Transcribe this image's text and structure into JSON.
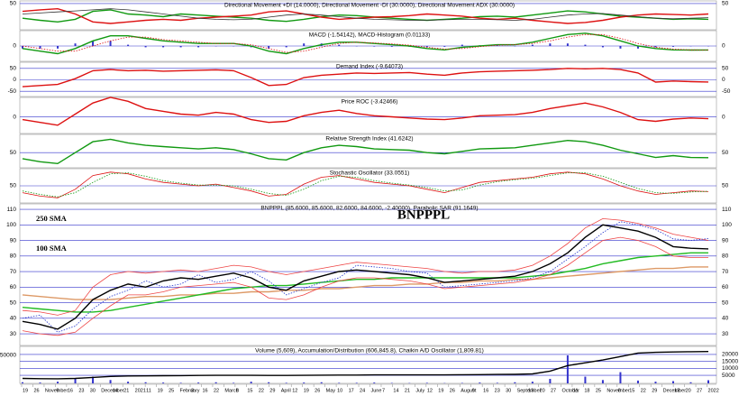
{
  "chart_data": [
    {
      "type": "line",
      "title": "Directional Movement +DI (14.0000), Directional Movement -DI (30.0000), Directional Movement ADX (30.0000)",
      "ylim": [
        0,
        55
      ],
      "yticks": [
        50
      ],
      "series": [
        {
          "color": "#119911",
          "style": "line",
          "values": [
            22,
            18,
            15,
            20,
            35,
            38,
            30,
            28,
            25,
            30,
            28,
            26,
            24,
            22,
            18,
            16,
            20,
            25,
            28,
            27,
            24,
            22,
            20,
            18,
            20,
            22,
            25,
            26,
            24,
            28,
            32,
            36,
            34,
            30,
            26,
            24,
            22,
            20,
            21,
            20
          ]
        },
        {
          "color": "#dd1111",
          "style": "line",
          "values": [
            35,
            38,
            40,
            30,
            15,
            12,
            15,
            18,
            20,
            18,
            22,
            24,
            26,
            28,
            34,
            36,
            30,
            24,
            20,
            22,
            24,
            25,
            27,
            30,
            28,
            26,
            22,
            20,
            22,
            18,
            15,
            12,
            14,
            18,
            24,
            28,
            30,
            29,
            28,
            30
          ]
        },
        {
          "color": "#333333",
          "style": "thin",
          "values": [
            30,
            32,
            34,
            36,
            38,
            40,
            38,
            34,
            30,
            26,
            22,
            20,
            19,
            20,
            24,
            28,
            30,
            28,
            25,
            22,
            20,
            19,
            18,
            18,
            19,
            20,
            20,
            19,
            18,
            20,
            24,
            28,
            30,
            31,
            28,
            25,
            22,
            21,
            22,
            23
          ]
        }
      ]
    },
    {
      "type": "line",
      "title": "MACD (-1.54142), MACD-Histogram (0.01133)",
      "ylim": [
        -6,
        6
      ],
      "yticks": [
        0
      ],
      "series": [
        {
          "color": "#3333cc",
          "style": "bar",
          "values": [
            -1,
            -1,
            -1,
            1,
            2,
            2,
            0.5,
            -0.5,
            -0.5,
            -0.5,
            -0.5,
            0,
            0,
            -0.5,
            -1,
            -0.5,
            1,
            1,
            0.5,
            0,
            -0.2,
            -0.3,
            -0.3,
            -0.5,
            -0.3,
            0.5,
            0.3,
            0.2,
            0,
            0.5,
            1,
            1,
            0.5,
            -0.5,
            -1,
            -1,
            -0.5,
            -0.3,
            -0.1,
            0.01133
          ]
        },
        {
          "color": "#119911",
          "style": "line",
          "values": [
            -1,
            -2,
            -3,
            -1,
            2,
            4,
            4,
            3,
            2,
            1.5,
            1,
            1,
            1,
            0,
            -2,
            -3,
            -1,
            0.5,
            1.5,
            1.5,
            1,
            0.5,
            0,
            -1,
            -1.5,
            -0.5,
            0,
            0.5,
            0.5,
            1.5,
            3,
            4.5,
            5,
            4,
            2,
            0,
            -1,
            -1.5,
            -1.6,
            -1.54142
          ]
        },
        {
          "color": "#dd1111",
          "style": "dotted",
          "values": [
            0,
            -1,
            -2,
            -2,
            0,
            2,
            3.5,
            3.5,
            2.5,
            2,
            1.5,
            1,
            1,
            0.5,
            -1,
            -2.5,
            -2,
            -0.5,
            1,
            1.5,
            1.2,
            0.8,
            0.3,
            -0.5,
            -1.2,
            -1,
            -0.3,
            0.3,
            0.5,
            1,
            2,
            3.5,
            4.5,
            4.5,
            3,
            1,
            -0.5,
            -1.2,
            -1.5,
            -1.55
          ]
        }
      ]
    },
    {
      "type": "line",
      "title": "Demand Index (-9.64073)",
      "ylim": [
        -73,
        77
      ],
      "yticks": [
        50,
        0,
        -50
      ],
      "series": [
        {
          "color": "#dd1111",
          "style": "line",
          "values": [
            -30,
            -25,
            -20,
            5,
            40,
            45,
            40,
            42,
            38,
            40,
            42,
            44,
            40,
            10,
            -25,
            -20,
            10,
            20,
            25,
            30,
            28,
            30,
            32,
            25,
            20,
            30,
            35,
            38,
            40,
            42,
            45,
            50,
            48,
            50,
            45,
            30,
            -10,
            -5,
            -8,
            -9.64
          ]
        }
      ]
    },
    {
      "type": "line",
      "title": "Price ROC (-3.42466)",
      "ylim": [
        -30,
        35
      ],
      "yticks": [
        0
      ],
      "series": [
        {
          "color": "#dd1111",
          "style": "line",
          "values": [
            -5,
            -10,
            -15,
            5,
            25,
            35,
            28,
            15,
            10,
            5,
            3,
            8,
            5,
            -5,
            -10,
            -8,
            2,
            8,
            12,
            6,
            2,
            0,
            -2,
            -4,
            -5,
            -2,
            2,
            3,
            4,
            8,
            15,
            20,
            25,
            18,
            8,
            -5,
            -8,
            -4,
            -2,
            -3.42
          ]
        }
      ]
    },
    {
      "type": "line",
      "title": "Relative Strength Index (41.6242)",
      "ylim": [
        25,
        80
      ],
      "yticks": [
        50
      ],
      "series": [
        {
          "color": "#119911",
          "style": "line",
          "values": [
            40,
            35,
            32,
            50,
            68,
            72,
            66,
            62,
            60,
            58,
            56,
            58,
            55,
            48,
            40,
            38,
            50,
            58,
            62,
            60,
            56,
            55,
            54,
            50,
            48,
            52,
            56,
            57,
            58,
            62,
            66,
            70,
            68,
            62,
            54,
            48,
            42,
            45,
            42,
            41.6
          ]
        }
      ]
    },
    {
      "type": "line",
      "title": "Stochastic Oscillator (33.0551)",
      "ylim": [
        0,
        100
      ],
      "yticks": [
        50
      ],
      "series": [
        {
          "color": "#dd1111",
          "style": "thin",
          "values": [
            30,
            20,
            15,
            40,
            80,
            90,
            85,
            70,
            60,
            55,
            50,
            55,
            45,
            35,
            20,
            25,
            55,
            75,
            80,
            70,
            60,
            55,
            50,
            40,
            30,
            45,
            60,
            65,
            70,
            75,
            85,
            90,
            85,
            70,
            50,
            35,
            25,
            30,
            35,
            33.06
          ]
        },
        {
          "color": "#119911",
          "style": "dotted",
          "values": [
            35,
            25,
            18,
            30,
            60,
            85,
            88,
            78,
            65,
            58,
            52,
            52,
            50,
            40,
            28,
            22,
            40,
            65,
            78,
            75,
            65,
            58,
            52,
            45,
            35,
            38,
            52,
            62,
            68,
            72,
            80,
            88,
            88,
            78,
            60,
            42,
            30,
            28,
            32,
            34
          ]
        }
      ]
    },
    {
      "type": "line",
      "title": "BNPPPL (85.6000, 85.6000, 82.6000, 84.6000, -2.40000), Parabolic SAR (91.1649)",
      "symbol": "BNPPPL",
      "annotations": [
        {
          "text": "250 SMA",
          "color": "#9a8a20"
        },
        {
          "text": "100 SMA",
          "color": "#22bb22"
        }
      ],
      "ylim": [
        22.5,
        113.5
      ],
      "yticks": [
        30,
        40,
        50,
        60,
        70,
        80,
        90,
        100,
        110
      ],
      "series": [
        {
          "color": "#dd9966",
          "style": "line",
          "values": [
            55,
            54,
            53,
            52,
            52,
            52,
            53,
            54,
            54,
            55,
            55,
            56,
            56,
            57,
            57,
            58,
            58,
            59,
            59,
            60,
            61,
            61,
            62,
            62,
            63,
            63,
            64,
            64,
            65,
            65,
            66,
            67,
            68,
            69,
            70,
            71,
            72,
            72,
            73,
            73
          ]
        },
        {
          "color": "#22bb22",
          "style": "line",
          "values": [
            47,
            46,
            45,
            44,
            44,
            45,
            47,
            49,
            51,
            53,
            55,
            57,
            59,
            60,
            61,
            61,
            62,
            63,
            64,
            65,
            65,
            66,
            66,
            66,
            66,
            66,
            66,
            66,
            66,
            67,
            68,
            70,
            72,
            75,
            77,
            79,
            80,
            81,
            82,
            82
          ]
        },
        {
          "color": "#ee4444",
          "style": "thin",
          "values": [
            45,
            44,
            42,
            45,
            60,
            68,
            70,
            69,
            70,
            71,
            70,
            72,
            74,
            73,
            70,
            68,
            70,
            72,
            74,
            76,
            75,
            74,
            73,
            72,
            70,
            69,
            70,
            70,
            71,
            74,
            80,
            88,
            98,
            104,
            103,
            101,
            98,
            94,
            92,
            90
          ]
        },
        {
          "color": "#ee4444",
          "style": "thin",
          "values": [
            32,
            30,
            29,
            31,
            40,
            48,
            55,
            55,
            57,
            60,
            61,
            62,
            63,
            60,
            53,
            52,
            55,
            60,
            64,
            66,
            66,
            65,
            64,
            62,
            59,
            60,
            61,
            62,
            63,
            65,
            68,
            74,
            82,
            90,
            92,
            90,
            86,
            80,
            79,
            79
          ]
        },
        {
          "color": "#2233cc",
          "style": "dotted",
          "values": [
            40,
            42,
            31,
            35,
            46,
            54,
            58,
            64,
            60,
            62,
            68,
            63,
            65,
            70,
            64,
            55,
            59,
            63,
            66,
            74,
            73,
            72,
            70,
            69,
            60,
            61,
            62,
            63,
            64,
            66,
            70,
            78,
            86,
            95,
            102,
            100,
            97,
            91,
            90,
            91.1649
          ]
        },
        {
          "color": "#000000",
          "style": "line",
          "values": [
            38,
            36,
            33,
            40,
            52,
            58,
            62,
            60,
            64,
            66,
            65,
            67,
            69,
            66,
            60,
            58,
            64,
            67,
            70,
            71,
            70,
            69,
            68,
            66,
            63,
            64,
            65,
            66,
            67,
            70,
            75,
            82,
            92,
            100,
            98,
            96,
            92,
            86,
            85,
            84.6
          ]
        }
      ]
    },
    {
      "type": "line",
      "title": "Volume (5,609), Accumulation/Distribution (606,845.8), Chaikin A/D Oscillator (1,809.81)",
      "ylim": [
        -800,
        25800
      ],
      "yticks": [
        20000,
        15000,
        10000,
        5000
      ],
      "y2lim": [
        0,
        66000
      ],
      "y2ticks": [
        50000
      ],
      "series": [
        {
          "color": "#3333cc",
          "style": "bar",
          "axis": "y2",
          "values": [
            2000,
            1500,
            3000,
            8000,
            12000,
            6000,
            3000,
            2000,
            1500,
            1000,
            1500,
            2000,
            1000,
            3000,
            2000,
            1000,
            1500,
            2000,
            1000,
            1000,
            1500,
            800,
            600,
            1000,
            500,
            800,
            1500,
            1000,
            2000,
            3000,
            8000,
            50000,
            12000,
            6000,
            20000,
            5000,
            3000,
            4000,
            2000,
            5609
          ]
        },
        {
          "color": "#000000",
          "style": "line",
          "values": [
            2800,
            2600,
            2500,
            2800,
            3500,
            4200,
            4500,
            4600,
            4700,
            4800,
            4900,
            5000,
            5000,
            5000,
            4900,
            4900,
            5000,
            5100,
            5200,
            5200,
            5300,
            5300,
            5300,
            5300,
            5300,
            5400,
            5500,
            5600,
            5700,
            6000,
            8000,
            12000,
            14000,
            16000,
            18500,
            21000,
            21500,
            21800,
            22000,
            22100
          ]
        }
      ]
    }
  ],
  "x_axis_labels": [
    "19",
    "26",
    "November",
    "9",
    "16",
    "23",
    "30",
    "December",
    "14",
    "21",
    "2021",
    "11",
    "19",
    "25",
    "February",
    "8",
    "16",
    "22",
    "March",
    "8",
    "15",
    "22",
    "29",
    "April",
    "12",
    "19",
    "26",
    "May",
    "10",
    "17",
    "24",
    "June",
    "7",
    "14",
    "21",
    "July",
    "12",
    "19",
    "26",
    "August",
    "9",
    "16",
    "23",
    "30",
    "September",
    "13",
    "20",
    "27",
    "October",
    "11",
    "18",
    "25",
    "November",
    "8",
    "15",
    "22",
    "29",
    "December",
    "13",
    "20",
    "27",
    "2022"
  ]
}
